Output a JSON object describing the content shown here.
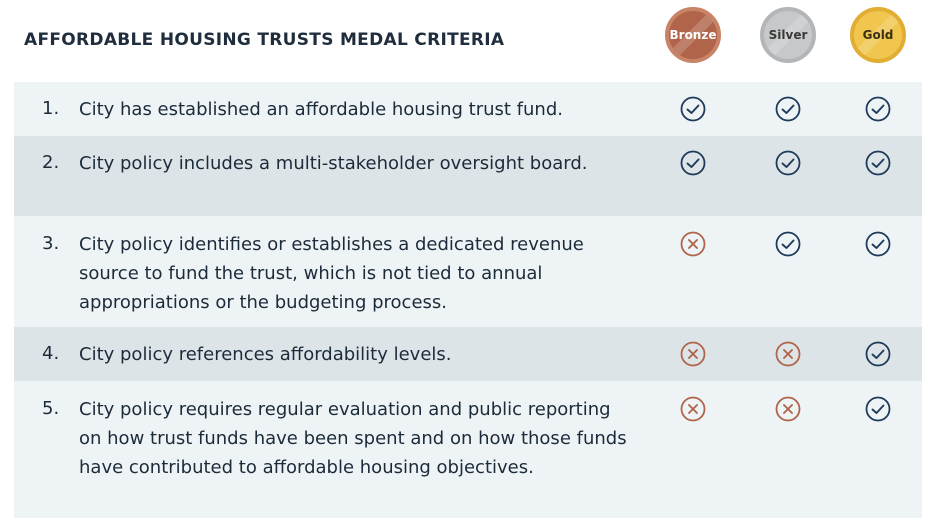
{
  "title": "AFFORDABLE HOUSING TRUSTS MEDAL CRITERIA",
  "medals": {
    "bronze": {
      "label": "Bronze",
      "color": "#b0654a"
    },
    "silver": {
      "label": "Silver",
      "color": "#c6c8ca"
    },
    "gold": {
      "label": "Gold",
      "color": "#f0c64e"
    }
  },
  "colors": {
    "check": "#1f3b5a",
    "cross": "#b0654a",
    "row_light": "#eef3f5",
    "row_dark": "#dde4e7"
  },
  "criteria": [
    {
      "number": "1.",
      "text": "City has established an affordable housing trust fund.",
      "bronze": "check",
      "silver": "check",
      "gold": "check"
    },
    {
      "number": "2.",
      "text": "City policy includes a multi-stakeholder oversight board.",
      "bronze": "check",
      "silver": "check",
      "gold": "check"
    },
    {
      "number": "3.",
      "text": "City policy identifies or establishes a dedicated revenue source to fund the trust, which is not tied to annual appropriations or the budgeting process.",
      "bronze": "cross",
      "silver": "check",
      "gold": "check"
    },
    {
      "number": "4.",
      "text": "City policy references affordability levels.",
      "bronze": "cross",
      "silver": "cross",
      "gold": "check"
    },
    {
      "number": "5.",
      "text": "City policy requires regular evaluation and public reporting on how trust funds have been spent and on how those funds have contributed to affordable housing objectives.",
      "bronze": "cross",
      "silver": "cross",
      "gold": "check"
    }
  ]
}
